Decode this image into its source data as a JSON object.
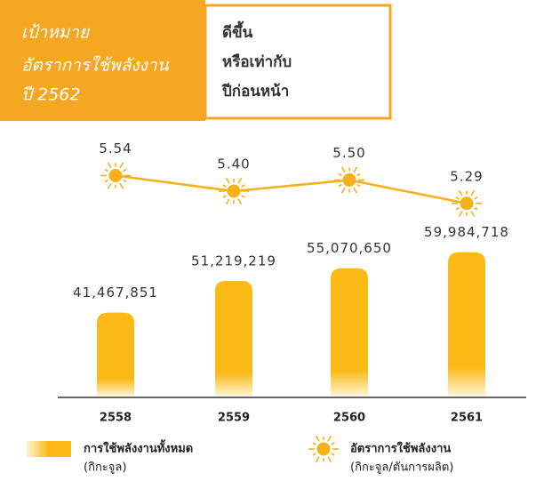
{
  "header": {
    "target": [
      "เป้าหมาย",
      "อัตราการใช้พลังงาน",
      "ปี 2562"
    ],
    "goal": [
      "ดีขึ้น",
      "หรือเท่ากับ",
      "ปีก่อนหน้า"
    ]
  },
  "chart_data": {
    "type": "bar",
    "categories": [
      "2558",
      "2559",
      "2560",
      "2561"
    ],
    "ylim": [
      16000000,
      70000000
    ],
    "y2lim": [
      5.2,
      5.6
    ],
    "series": [
      {
        "name": "การใช้พลังงานทั้งหมด",
        "unit": "(กิกะจูล)",
        "color": "#fbb917",
        "values": [
          41467851,
          51219219,
          55070650,
          59984718
        ],
        "value_labels": [
          "41,467,851",
          "51,219,219",
          "55,070,650",
          "59,984,718"
        ]
      },
      {
        "name": "อัตราการใช้พลังงาน",
        "unit": "(กิกะจูล/ตันการผลิต)",
        "color": "#f5b01a",
        "axis": "y2",
        "type": "line",
        "values": [
          5.54,
          5.4,
          5.5,
          5.29
        ],
        "value_labels": [
          "5.54",
          "5.40",
          "5.50",
          "5.29"
        ]
      }
    ]
  }
}
